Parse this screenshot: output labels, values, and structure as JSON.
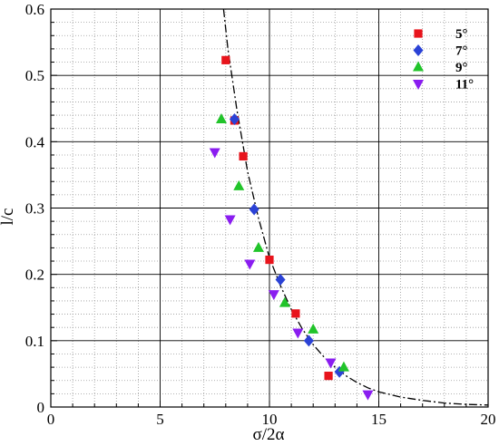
{
  "chart_data": {
    "type": "scatter",
    "xlabel": "σ/2α",
    "ylabel": "l/c",
    "xlim": [
      0,
      20
    ],
    "ylim": [
      0,
      0.6
    ],
    "x_ticks": [
      "0",
      "5",
      "10",
      "15",
      "20"
    ],
    "y_ticks": [
      "0",
      "0.1",
      "0.2",
      "0.3",
      "0.4",
      "0.5",
      "0.6"
    ],
    "x_tick_values": [
      0,
      5,
      10,
      15,
      20
    ],
    "y_tick_values": [
      0,
      0.1,
      0.2,
      0.3,
      0.4,
      0.5,
      0.6
    ],
    "grid": "major solid, minor dotted",
    "legend_position": "top-right",
    "series": [
      {
        "name": "5°",
        "marker": "square",
        "color": "#e8141c",
        "points": [
          {
            "x": 8.0,
            "y": 0.523
          },
          {
            "x": 8.4,
            "y": 0.432
          },
          {
            "x": 8.8,
            "y": 0.378
          },
          {
            "x": 10.0,
            "y": 0.222
          },
          {
            "x": 11.2,
            "y": 0.141
          },
          {
            "x": 12.7,
            "y": 0.047
          }
        ]
      },
      {
        "name": "7°",
        "marker": "diamond",
        "color": "#2b42d6",
        "points": [
          {
            "x": 8.4,
            "y": 0.434
          },
          {
            "x": 9.3,
            "y": 0.298
          },
          {
            "x": 10.5,
            "y": 0.192
          },
          {
            "x": 11.8,
            "y": 0.1
          },
          {
            "x": 13.2,
            "y": 0.053
          }
        ]
      },
      {
        "name": "9°",
        "marker": "triangle-up",
        "color": "#21c42a",
        "points": [
          {
            "x": 7.8,
            "y": 0.434
          },
          {
            "x": 8.6,
            "y": 0.333
          },
          {
            "x": 9.5,
            "y": 0.24
          },
          {
            "x": 10.7,
            "y": 0.157
          },
          {
            "x": 12.0,
            "y": 0.117
          },
          {
            "x": 13.4,
            "y": 0.06
          }
        ]
      },
      {
        "name": "11°",
        "marker": "triangle-down",
        "color": "#8a1df0",
        "points": [
          {
            "x": 7.5,
            "y": 0.384
          },
          {
            "x": 8.2,
            "y": 0.283
          },
          {
            "x": 9.1,
            "y": 0.216
          },
          {
            "x": 10.2,
            "y": 0.17
          },
          {
            "x": 11.3,
            "y": 0.112
          },
          {
            "x": 12.8,
            "y": 0.067
          },
          {
            "x": 14.5,
            "y": 0.019
          }
        ]
      }
    ],
    "fit_curve": {
      "style": "dash-dot",
      "color": "#000000",
      "points": [
        {
          "x": 7.9,
          "y": 0.6
        },
        {
          "x": 8.1,
          "y": 0.54
        },
        {
          "x": 8.5,
          "y": 0.45
        },
        {
          "x": 9.0,
          "y": 0.355
        },
        {
          "x": 9.5,
          "y": 0.285
        },
        {
          "x": 10.0,
          "y": 0.225
        },
        {
          "x": 10.5,
          "y": 0.183
        },
        {
          "x": 11.0,
          "y": 0.147
        },
        {
          "x": 11.5,
          "y": 0.118
        },
        {
          "x": 12.0,
          "y": 0.094
        },
        {
          "x": 12.5,
          "y": 0.075
        },
        {
          "x": 13.0,
          "y": 0.06
        },
        {
          "x": 13.5,
          "y": 0.047
        },
        {
          "x": 14.0,
          "y": 0.037
        },
        {
          "x": 14.5,
          "y": 0.029
        },
        {
          "x": 15.0,
          "y": 0.023
        },
        {
          "x": 16.0,
          "y": 0.015
        },
        {
          "x": 17.0,
          "y": 0.01
        },
        {
          "x": 18.0,
          "y": 0.006
        },
        {
          "x": 19.0,
          "y": 0.004
        },
        {
          "x": 20.0,
          "y": 0.003
        }
      ]
    }
  }
}
